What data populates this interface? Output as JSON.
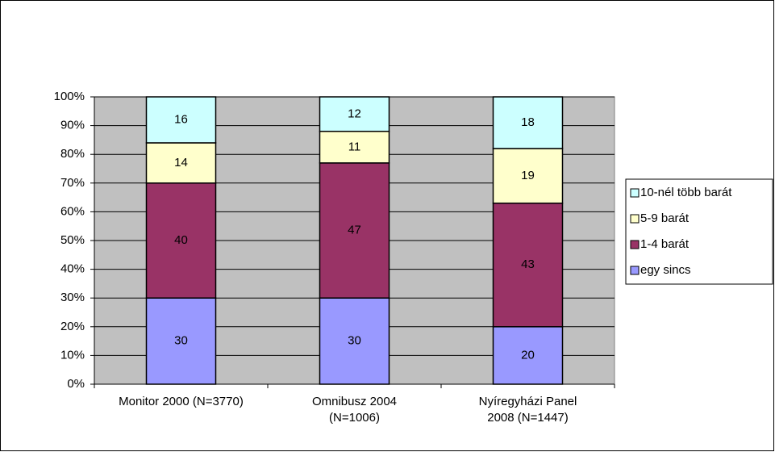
{
  "chart_data": {
    "type": "stacked_bar",
    "categories": [
      "Monitor 2000 (N=3770)",
      "Omnibusz 2004\n(N=1006)",
      "Nyíregyházi Panel\n2008 (N=1447)"
    ],
    "series": [
      {
        "name": "egy sincs",
        "color": "#9999ff",
        "values": [
          30,
          30,
          20
        ]
      },
      {
        "name": "1-4 barát",
        "color": "#993366",
        "values": [
          40,
          47,
          43
        ]
      },
      {
        "name": "5-9 barát",
        "color": "#ffffcc",
        "values": [
          14,
          11,
          19
        ]
      },
      {
        "name": "10-nél több barát",
        "color": "#ccffff",
        "values": [
          16,
          12,
          18
        ]
      }
    ],
    "ylim": [
      0,
      100
    ],
    "yticks": [
      {
        "value": 0,
        "label": "0%"
      },
      {
        "value": 10,
        "label": "10%"
      },
      {
        "value": 20,
        "label": "20%"
      },
      {
        "value": 30,
        "label": "30%"
      },
      {
        "value": 40,
        "label": "40%"
      },
      {
        "value": 50,
        "label": "50%"
      },
      {
        "value": 60,
        "label": "60%"
      },
      {
        "value": 70,
        "label": "70%"
      },
      {
        "value": 80,
        "label": "80%"
      },
      {
        "value": 90,
        "label": "90%"
      },
      {
        "value": 100,
        "label": "100%"
      }
    ],
    "grid": true,
    "legend": "right"
  }
}
